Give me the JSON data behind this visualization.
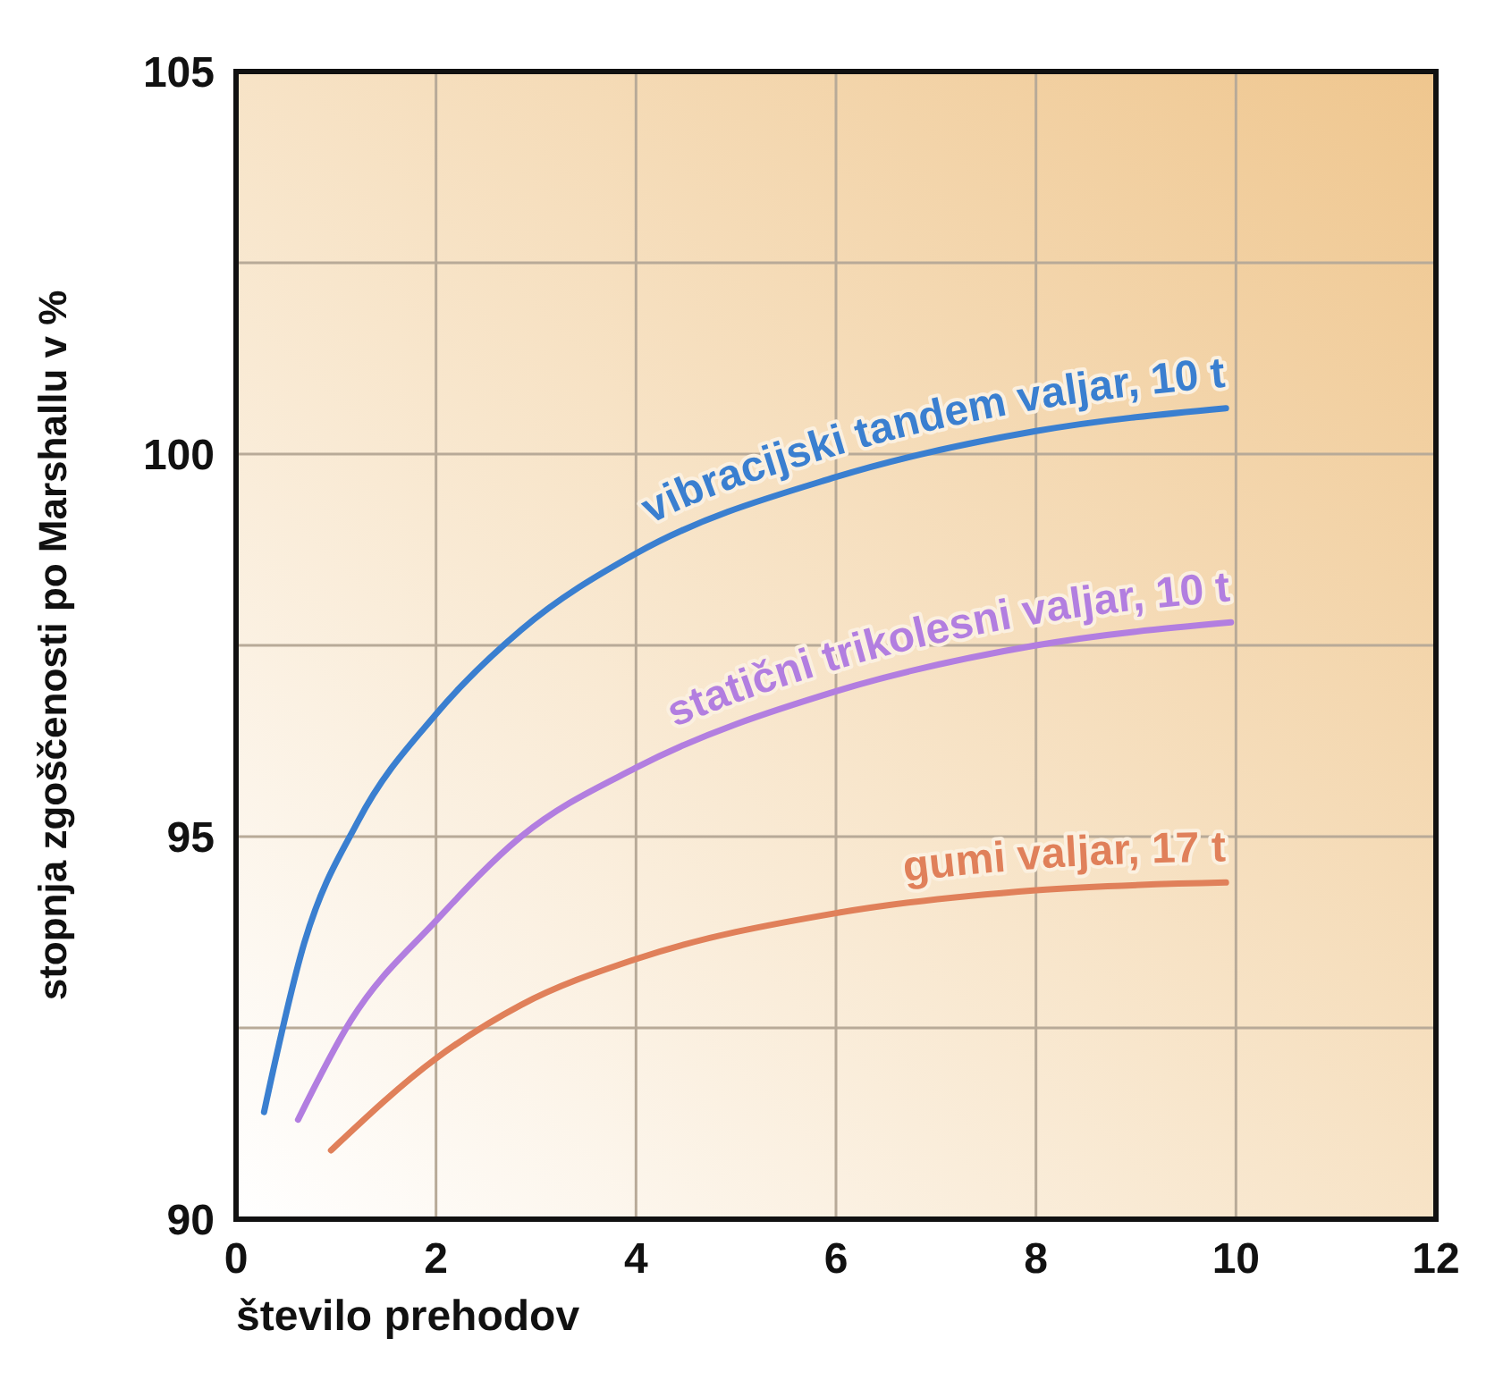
{
  "chart_data": {
    "type": "line",
    "xlabel": "število prehodov",
    "ylabel": "stopnja zgoščenosti po Marshallu v %",
    "xlim": [
      0,
      12
    ],
    "xticks": [
      0,
      2,
      4,
      6,
      8,
      10,
      12
    ],
    "ylim": [
      90,
      105
    ],
    "yticks": [
      90,
      {
        "value": 92.5,
        "label": null
      },
      95,
      {
        "value": 97.5,
        "label": null
      },
      100,
      {
        "value": 102.5,
        "label": null
      },
      105
    ],
    "grid": true,
    "marker": "none",
    "line_style": "solid",
    "series": [
      {
        "name": "vibracijski tandem valjar, 10 t",
        "color": "#3a7fd0",
        "x": [
          0.28,
          0.68,
          1.22,
          2,
          2.85,
          4,
          6,
          8,
          9.9
        ],
        "values": [
          91.4,
          93.6,
          95.2,
          96.6,
          97.7,
          98.7,
          99.7,
          100.3,
          100.6
        ]
      },
      {
        "name": "statični trikolesni valjar, 10 t",
        "color": "#b27ee0",
        "x": [
          0.62,
          1.15,
          2,
          2.85,
          4,
          6,
          8,
          9.95
        ],
        "values": [
          91.3,
          92.6,
          93.9,
          95,
          95.9,
          96.9,
          97.5,
          97.8
        ]
      },
      {
        "name": "gumi valjar, 17 t",
        "color": "#e0805a",
        "x": [
          0.95,
          2,
          2.85,
          4,
          6,
          8,
          9.9
        ],
        "values": [
          90.9,
          92.1,
          92.8,
          93.4,
          94,
          94.3,
          94.4
        ]
      }
    ]
  }
}
